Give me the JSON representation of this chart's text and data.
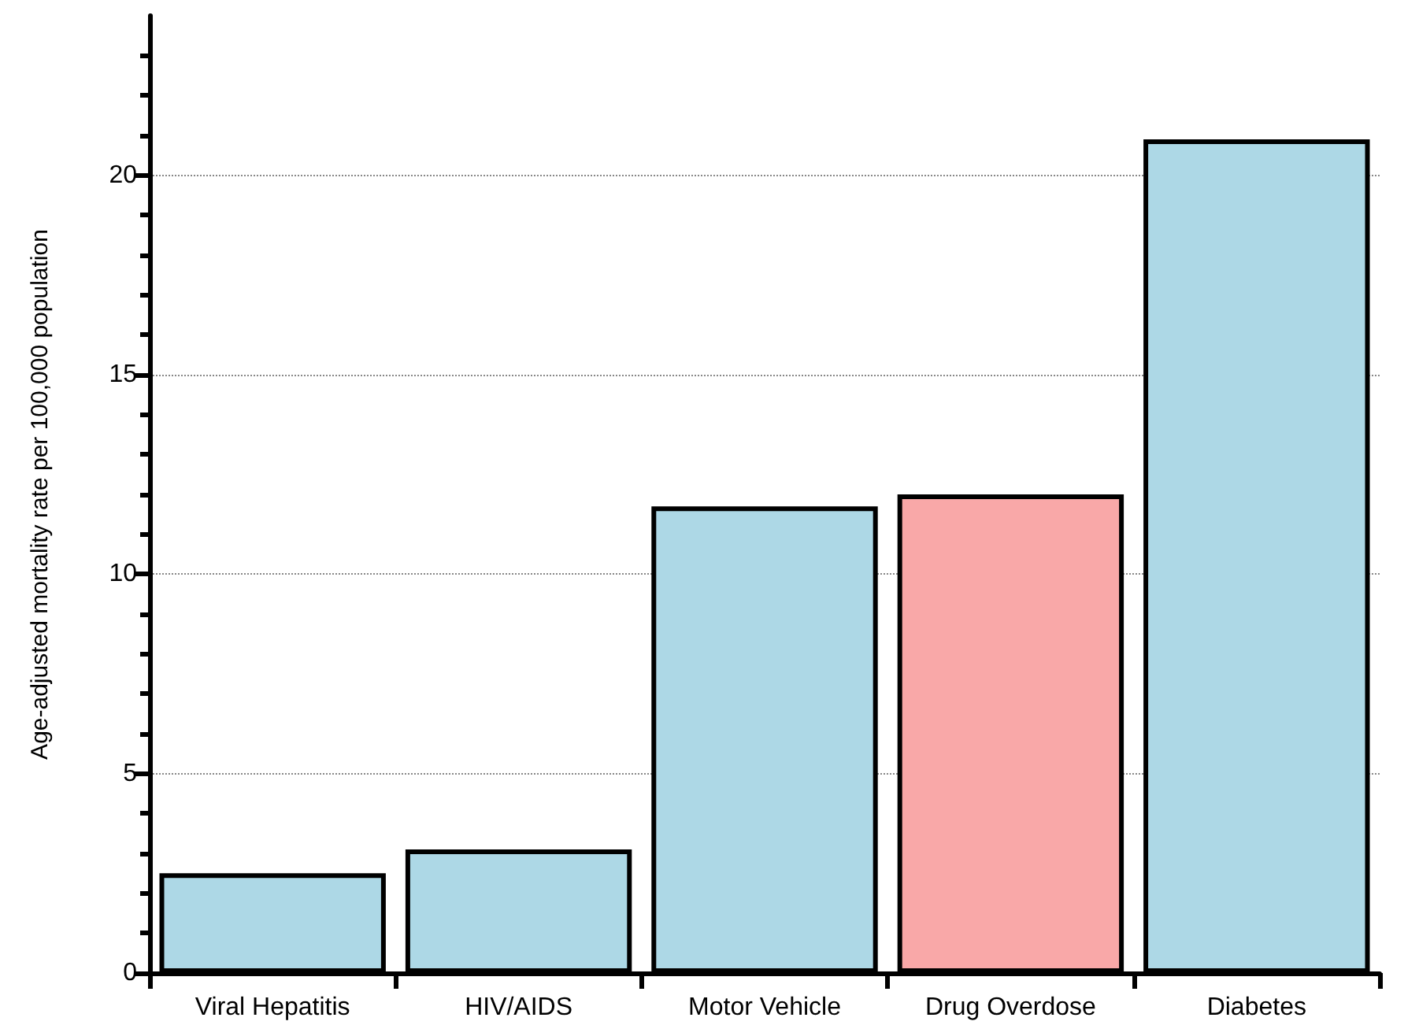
{
  "chart_data": {
    "type": "bar",
    "ylabel": "Age-adjusted mortality rate per 100,000 population",
    "categories": [
      "Viral Hepatitis",
      "HIV/AIDS",
      "Motor Vehicle",
      "Drug Overdose",
      "Diabetes"
    ],
    "values": [
      2.5,
      3.1,
      11.7,
      12.0,
      20.9
    ],
    "colors": [
      "#add8e6",
      "#add8e6",
      "#add8e6",
      "#f9a8a8",
      "#add8e6"
    ],
    "ylim": [
      0,
      24
    ],
    "yticks": [
      0,
      5,
      10,
      15,
      20
    ],
    "grid": "y"
  }
}
